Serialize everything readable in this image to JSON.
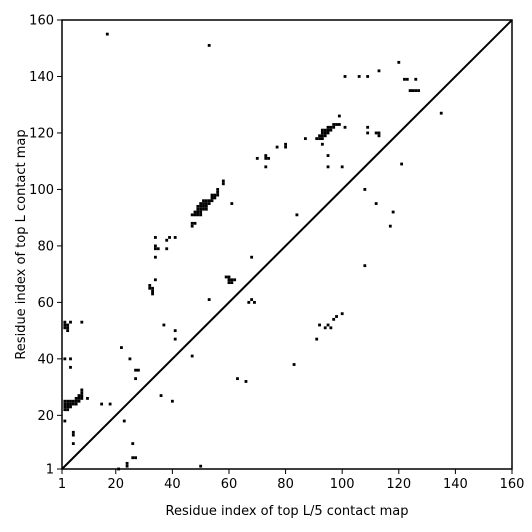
{
  "chart_data": {
    "type": "scatter",
    "title": "",
    "xlabel": "Residue index of top L/5 contact map",
    "ylabel": "Residue index of top L contact map",
    "xlim": [
      1,
      160
    ],
    "ylim": [
      1,
      160
    ],
    "xticks": [
      1,
      20,
      40,
      60,
      80,
      100,
      120,
      140,
      160
    ],
    "yticks": [
      1,
      20,
      40,
      60,
      80,
      100,
      120,
      140,
      160
    ],
    "grid": false,
    "diagonal_line": true,
    "marker_color": "#000000",
    "series": [
      {
        "points": [
          [
            2,
            22
          ],
          [
            2,
            23
          ],
          [
            2,
            24
          ],
          [
            2,
            25
          ],
          [
            3,
            22
          ],
          [
            3,
            23
          ],
          [
            3,
            24
          ],
          [
            3,
            25
          ],
          [
            4,
            23
          ],
          [
            4,
            24
          ],
          [
            4,
            25
          ],
          [
            5,
            24
          ],
          [
            5,
            25
          ],
          [
            6,
            24
          ],
          [
            6,
            25
          ],
          [
            6,
            26
          ],
          [
            7,
            25
          ],
          [
            7,
            26
          ],
          [
            7,
            27
          ],
          [
            8,
            26
          ],
          [
            8,
            27
          ],
          [
            8,
            28
          ],
          [
            8,
            29
          ],
          [
            2,
            18
          ],
          [
            2,
            40
          ],
          [
            2,
            51
          ],
          [
            2,
            52
          ],
          [
            2,
            53
          ],
          [
            3,
            50
          ],
          [
            3,
            51
          ],
          [
            3,
            52
          ],
          [
            4,
            53
          ],
          [
            4,
            40
          ],
          [
            4,
            37
          ],
          [
            5,
            14
          ],
          [
            5,
            13
          ],
          [
            5,
            10
          ],
          [
            8,
            53
          ],
          [
            10,
            26
          ],
          [
            15,
            24
          ],
          [
            18,
            24
          ],
          [
            17,
            155
          ],
          [
            21,
            1
          ],
          [
            22,
            44
          ],
          [
            23,
            18
          ],
          [
            24,
            3
          ],
          [
            24,
            2
          ],
          [
            25,
            40
          ],
          [
            26,
            10
          ],
          [
            26,
            5
          ],
          [
            27,
            5
          ],
          [
            27,
            33
          ],
          [
            27,
            36
          ],
          [
            28,
            36
          ],
          [
            32,
            66
          ],
          [
            32,
            65
          ],
          [
            33,
            64
          ],
          [
            33,
            63
          ],
          [
            33,
            65
          ],
          [
            34,
            68
          ],
          [
            34,
            76
          ],
          [
            34,
            79
          ],
          [
            34,
            80
          ],
          [
            34,
            83
          ],
          [
            35,
            79
          ],
          [
            36,
            27
          ],
          [
            37,
            52
          ],
          [
            38,
            79
          ],
          [
            38,
            82
          ],
          [
            39,
            83
          ],
          [
            40,
            25
          ],
          [
            41,
            47
          ],
          [
            41,
            50
          ],
          [
            41,
            83
          ],
          [
            47,
            41
          ],
          [
            47,
            87
          ],
          [
            47,
            88
          ],
          [
            47,
            91
          ],
          [
            48,
            91
          ],
          [
            48,
            88
          ],
          [
            48,
            92
          ],
          [
            49,
            91
          ],
          [
            49,
            92
          ],
          [
            49,
            93
          ],
          [
            49,
            94
          ],
          [
            50,
            91
          ],
          [
            50,
            92
          ],
          [
            50,
            93
          ],
          [
            50,
            94
          ],
          [
            50,
            95
          ],
          [
            51,
            93
          ],
          [
            51,
            94
          ],
          [
            51,
            95
          ],
          [
            51,
            96
          ],
          [
            52,
            93
          ],
          [
            52,
            94
          ],
          [
            52,
            95
          ],
          [
            52,
            96
          ],
          [
            53,
            95
          ],
          [
            53,
            96
          ],
          [
            53,
            61
          ],
          [
            53,
            151
          ],
          [
            54,
            96
          ],
          [
            54,
            97
          ],
          [
            54,
            98
          ],
          [
            55,
            97
          ],
          [
            55,
            98
          ],
          [
            56,
            98
          ],
          [
            56,
            99
          ],
          [
            56,
            100
          ],
          [
            58,
            102
          ],
          [
            58,
            103
          ],
          [
            59,
            69
          ],
          [
            60,
            67
          ],
          [
            60,
            68
          ],
          [
            60,
            69
          ],
          [
            61,
            67
          ],
          [
            61,
            68
          ],
          [
            61,
            95
          ],
          [
            62,
            68
          ],
          [
            50,
            2
          ],
          [
            63,
            33
          ],
          [
            66,
            32
          ],
          [
            67,
            60
          ],
          [
            68,
            61
          ],
          [
            68,
            76
          ],
          [
            69,
            60
          ],
          [
            70,
            111
          ],
          [
            73,
            108
          ],
          [
            73,
            111
          ],
          [
            73,
            112
          ],
          [
            74,
            111
          ],
          [
            77,
            115
          ],
          [
            80,
            116
          ],
          [
            80,
            115
          ],
          [
            83,
            38
          ],
          [
            84,
            91
          ],
          [
            87,
            118
          ],
          [
            91,
            47
          ],
          [
            91,
            118
          ],
          [
            92,
            118
          ],
          [
            92,
            119
          ],
          [
            92,
            52
          ],
          [
            93,
            118
          ],
          [
            93,
            119
          ],
          [
            93,
            120
          ],
          [
            93,
            121
          ],
          [
            93,
            116
          ],
          [
            94,
            119
          ],
          [
            94,
            120
          ],
          [
            94,
            121
          ],
          [
            94,
            51
          ],
          [
            95,
            120
          ],
          [
            95,
            121
          ],
          [
            95,
            122
          ],
          [
            95,
            52
          ],
          [
            95,
            108
          ],
          [
            95,
            112
          ],
          [
            96,
            121
          ],
          [
            96,
            122
          ],
          [
            96,
            51
          ],
          [
            97,
            122
          ],
          [
            97,
            123
          ],
          [
            97,
            54
          ],
          [
            98,
            123
          ],
          [
            98,
            55
          ],
          [
            99,
            123
          ],
          [
            99,
            126
          ],
          [
            100,
            56
          ],
          [
            100,
            108
          ],
          [
            101,
            122
          ],
          [
            101,
            140
          ],
          [
            106,
            140
          ],
          [
            108,
            73
          ],
          [
            108,
            100
          ],
          [
            109,
            120
          ],
          [
            109,
            122
          ],
          [
            109,
            140
          ],
          [
            112,
            95
          ],
          [
            112,
            120
          ],
          [
            113,
            119
          ],
          [
            113,
            120
          ],
          [
            113,
            142
          ],
          [
            117,
            87
          ],
          [
            118,
            92
          ],
          [
            120,
            145
          ],
          [
            121,
            109
          ],
          [
            122,
            139
          ],
          [
            123,
            139
          ],
          [
            124,
            135
          ],
          [
            125,
            135
          ],
          [
            126,
            139
          ],
          [
            126,
            135
          ],
          [
            127,
            135
          ],
          [
            135,
            127
          ]
        ]
      }
    ]
  }
}
